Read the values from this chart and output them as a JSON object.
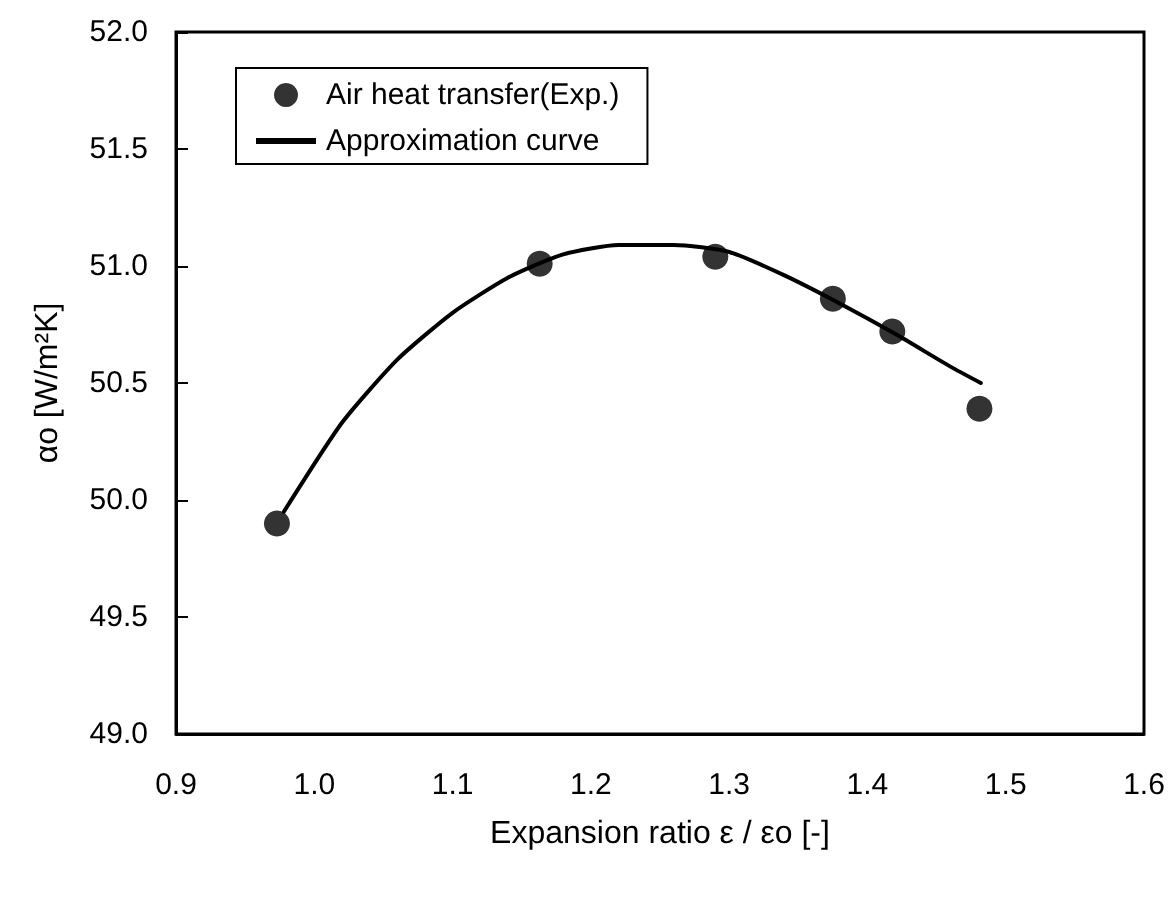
{
  "chart_data": {
    "type": "scatter",
    "xlabel": "Expansion ratio ε / εo [-]",
    "ylabel": "αo [W/m²K]",
    "xlim": [
      0.9,
      1.6
    ],
    "xticks": [
      0.9,
      {
        "value": 1.0,
        "label": "1.0"
      },
      1.1,
      1.2,
      1.3,
      1.4,
      1.5,
      1.6
    ],
    "ylim": [
      49,
      52
    ],
    "yticks": [
      {
        "value": 49,
        "label": "49.0"
      },
      49.5,
      {
        "value": 50,
        "label": "50.0"
      },
      50.5,
      {
        "value": 51,
        "label": "51.0"
      },
      51.5,
      {
        "value": 52,
        "label": "52.0"
      }
    ],
    "grid": false,
    "legend": "top left",
    "marker": "circle",
    "series": [
      {
        "name": "Air heat transfer(Exp.)",
        "color": "#000000",
        "x": [
          0.973,
          1.163,
          1.29,
          1.375,
          1.418,
          1.481
        ],
        "values": [
          49.9,
          51.01,
          51.04,
          50.86,
          50.72,
          50.39
        ]
      },
      {
        "name": "Approximation curve",
        "type": "line",
        "color": "#000000",
        "marker": "none",
        "line_style": "solid",
        "x": [
          0.978,
          1.02,
          1.06,
          1.1,
          1.14,
          1.18,
          1.22,
          1.26,
          1.3,
          1.34,
          1.38,
          1.42,
          1.46,
          1.482
        ],
        "values": [
          49.95,
          50.33,
          50.6,
          50.8,
          50.95,
          51.05,
          51.09,
          51.09,
          51.06,
          50.96,
          50.84,
          50.71,
          50.57,
          50.5
        ]
      }
    ]
  }
}
